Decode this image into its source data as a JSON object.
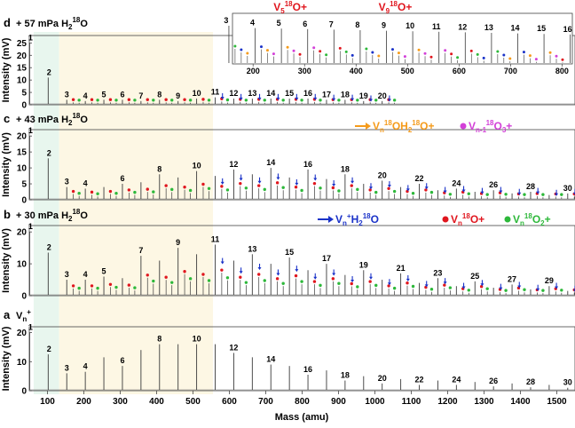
{
  "chart_data": {
    "type": "line",
    "title": "",
    "xlabel": "Mass (amu)",
    "ylabel": "Intensity (mV)",
    "xlim": [
      50,
      1550
    ],
    "x_ticks": [
      100,
      200,
      300,
      400,
      500,
      600,
      700,
      800,
      900,
      1000,
      1100,
      1200,
      1300,
      1400,
      1500
    ],
    "highlight_regions": [
      {
        "name": "green-band",
        "x_range": [
          62,
          132
        ],
        "color": "#e8f6ee"
      },
      {
        "name": "cream-band",
        "x_range": [
          132,
          555
        ],
        "color": "#fdf7e4"
      }
    ],
    "panels": [
      {
        "id": "a",
        "label": "a",
        "title": "Vn+",
        "title_base": "V",
        "title_sub": "n",
        "title_sup": "+",
        "ylim": [
          0,
          22
        ],
        "yticks": [
          0,
          10,
          20
        ],
        "peaks": [
          {
            "n": 1,
            "mass": 51,
            "intensity": 20
          },
          {
            "n": 2,
            "mass": 102,
            "intensity": 12.5
          },
          {
            "n": 3,
            "mass": 153,
            "intensity": 6
          },
          {
            "n": 4,
            "mass": 204,
            "intensity": 6.5
          },
          {
            "n": 5,
            "mass": 255,
            "intensity": 11.5
          },
          {
            "n": 6,
            "mass": 306,
            "intensity": 8.5
          },
          {
            "n": 7,
            "mass": 357,
            "intensity": 14
          },
          {
            "n": 8,
            "mass": 408,
            "intensity": 16
          },
          {
            "n": 9,
            "mass": 459,
            "intensity": 16
          },
          {
            "n": 10,
            "mass": 510,
            "intensity": 16
          },
          {
            "n": 11,
            "mass": 561,
            "intensity": 16
          },
          {
            "n": 12,
            "mass": 612,
            "intensity": 13
          },
          {
            "n": 13,
            "mass": 663,
            "intensity": 11.5
          },
          {
            "n": 14,
            "mass": 714,
            "intensity": 9
          },
          {
            "n": 15,
            "mass": 765,
            "intensity": 8.5
          },
          {
            "n": 16,
            "mass": 816,
            "intensity": 5.5
          },
          {
            "n": 17,
            "mass": 867,
            "intensity": 7
          },
          {
            "n": 18,
            "mass": 918,
            "intensity": 3.5
          },
          {
            "n": 19,
            "mass": 969,
            "intensity": 5
          },
          {
            "n": 20,
            "mass": 1020,
            "intensity": 2.5
          },
          {
            "n": 21,
            "mass": 1071,
            "intensity": 4
          },
          {
            "n": 22,
            "mass": 1122,
            "intensity": 2
          },
          {
            "n": 23,
            "mass": 1173,
            "intensity": 3.5
          },
          {
            "n": 24,
            "mass": 1224,
            "intensity": 2
          },
          {
            "n": 25,
            "mass": 1275,
            "intensity": 3
          },
          {
            "n": 26,
            "mass": 1326,
            "intensity": 1.5
          },
          {
            "n": 27,
            "mass": 1377,
            "intensity": 2.5
          },
          {
            "n": 28,
            "mass": 1428,
            "intensity": 1.2
          },
          {
            "n": 29,
            "mass": 1479,
            "intensity": 2
          },
          {
            "n": 30,
            "mass": 1530,
            "intensity": 1
          }
        ],
        "labeled": [
          1,
          2,
          3,
          4,
          6,
          8,
          10,
          12,
          14,
          16,
          18,
          20,
          22,
          24,
          26,
          28,
          30
        ]
      },
      {
        "id": "b",
        "label": "b",
        "title": "+ 30 mPa H2 18O",
        "title_text": "+ 30 mPa H",
        "title_sub": "2",
        "title_sup": "18",
        "title_end": "O",
        "ylim": [
          0,
          22
        ],
        "yticks": [
          0,
          10,
          20
        ],
        "peaks": [
          {
            "n": 1,
            "mass": 51,
            "intensity": 20
          },
          {
            "n": 2,
            "mass": 102,
            "intensity": 13.5
          },
          {
            "n": 3,
            "mass": 153,
            "intensity": 5
          },
          {
            "n": 4,
            "mass": 204,
            "intensity": 5
          },
          {
            "n": 5,
            "mass": 255,
            "intensity": 6
          },
          {
            "n": 6,
            "mass": 306,
            "intensity": 5.5
          },
          {
            "n": 7,
            "mass": 357,
            "intensity": 12.5
          },
          {
            "n": 8,
            "mass": 408,
            "intensity": 11
          },
          {
            "n": 9,
            "mass": 459,
            "intensity": 15
          },
          {
            "n": 10,
            "mass": 510,
            "intensity": 13
          },
          {
            "n": 11,
            "mass": 561,
            "intensity": 16
          },
          {
            "n": 12,
            "mass": 612,
            "intensity": 11
          },
          {
            "n": 13,
            "mass": 663,
            "intensity": 13
          },
          {
            "n": 14,
            "mass": 714,
            "intensity": 10
          },
          {
            "n": 15,
            "mass": 765,
            "intensity": 12
          },
          {
            "n": 16,
            "mass": 816,
            "intensity": 8
          },
          {
            "n": 17,
            "mass": 867,
            "intensity": 10
          },
          {
            "n": 18,
            "mass": 918,
            "intensity": 6.5
          },
          {
            "n": 19,
            "mass": 969,
            "intensity": 8
          },
          {
            "n": 20,
            "mass": 1020,
            "intensity": 5
          },
          {
            "n": 21,
            "mass": 1071,
            "intensity": 7
          },
          {
            "n": 22,
            "mass": 1122,
            "intensity": 4
          },
          {
            "n": 23,
            "mass": 1173,
            "intensity": 5.5
          },
          {
            "n": 24,
            "mass": 1224,
            "intensity": 3
          },
          {
            "n": 25,
            "mass": 1275,
            "intensity": 4.5
          },
          {
            "n": 26,
            "mass": 1326,
            "intensity": 2.5
          },
          {
            "n": 27,
            "mass": 1377,
            "intensity": 3.5
          },
          {
            "n": 28,
            "mass": 1428,
            "intensity": 2
          },
          {
            "n": 29,
            "mass": 1479,
            "intensity": 3
          },
          {
            "n": 30,
            "mass": 1530,
            "intensity": 1.5
          }
        ],
        "labeled": [
          1,
          2,
          3,
          4,
          5,
          7,
          9,
          11,
          13,
          15,
          17,
          19,
          21,
          23,
          25,
          27,
          29
        ]
      },
      {
        "id": "c",
        "label": "c",
        "title": "+ 43 mPa H2 18O",
        "title_text": "+ 43 mPa H",
        "title_sub": "2",
        "title_sup": "18",
        "title_end": "O",
        "ylim": [
          0,
          22
        ],
        "yticks": [
          0,
          5,
          10,
          15,
          20
        ],
        "peaks": [
          {
            "n": 1,
            "mass": 51,
            "intensity": 20
          },
          {
            "n": 2,
            "mass": 102,
            "intensity": 13
          },
          {
            "n": 3,
            "mass": 153,
            "intensity": 4
          },
          {
            "n": 4,
            "mass": 204,
            "intensity": 3.5
          },
          {
            "n": 5,
            "mass": 255,
            "intensity": 4
          },
          {
            "n": 6,
            "mass": 306,
            "intensity": 5
          },
          {
            "n": 7,
            "mass": 357,
            "intensity": 5.5
          },
          {
            "n": 8,
            "mass": 408,
            "intensity": 8
          },
          {
            "n": 9,
            "mass": 459,
            "intensity": 7
          },
          {
            "n": 10,
            "mass": 510,
            "intensity": 9
          },
          {
            "n": 11,
            "mass": 561,
            "intensity": 7.5
          },
          {
            "n": 12,
            "mass": 612,
            "intensity": 9.5
          },
          {
            "n": 13,
            "mass": 663,
            "intensity": 8
          },
          {
            "n": 14,
            "mass": 714,
            "intensity": 10
          },
          {
            "n": 15,
            "mass": 765,
            "intensity": 7
          },
          {
            "n": 16,
            "mass": 816,
            "intensity": 9.5
          },
          {
            "n": 17,
            "mass": 867,
            "intensity": 6.5
          },
          {
            "n": 18,
            "mass": 918,
            "intensity": 8
          },
          {
            "n": 19,
            "mass": 969,
            "intensity": 5
          },
          {
            "n": 20,
            "mass": 1020,
            "intensity": 6
          },
          {
            "n": 21,
            "mass": 1071,
            "intensity": 4
          },
          {
            "n": 22,
            "mass": 1122,
            "intensity": 5
          },
          {
            "n": 23,
            "mass": 1173,
            "intensity": 3
          },
          {
            "n": 24,
            "mass": 1224,
            "intensity": 3.5
          },
          {
            "n": 25,
            "mass": 1275,
            "intensity": 2.5
          },
          {
            "n": 26,
            "mass": 1326,
            "intensity": 3
          },
          {
            "n": 27,
            "mass": 1377,
            "intensity": 2
          },
          {
            "n": 28,
            "mass": 1428,
            "intensity": 2.5
          },
          {
            "n": 29,
            "mass": 1479,
            "intensity": 1.5
          },
          {
            "n": 30,
            "mass": 1530,
            "intensity": 2
          }
        ],
        "labeled": [
          1,
          2,
          3,
          4,
          6,
          8,
          10,
          12,
          14,
          16,
          18,
          20,
          22,
          24,
          26,
          28,
          30
        ]
      },
      {
        "id": "d",
        "label": "d",
        "title": "+ 57 mPa H2 18O",
        "title_text": "+ 57 mPa H",
        "title_sub": "2",
        "title_sup": "18",
        "title_end": "O",
        "ylim": [
          0,
          28
        ],
        "yticks": [
          0,
          5,
          10,
          15,
          20,
          25
        ],
        "peaks": [
          {
            "n": 1,
            "mass": 51,
            "intensity": 25
          },
          {
            "n": 2,
            "mass": 102,
            "intensity": 11
          },
          {
            "n": 3,
            "mass": 153,
            "intensity": 2
          },
          {
            "n": 4,
            "mass": 204,
            "intensity": 1.5
          },
          {
            "n": 5,
            "mass": 255,
            "intensity": 2
          },
          {
            "n": 6,
            "mass": 306,
            "intensity": 2
          },
          {
            "n": 7,
            "mass": 357,
            "intensity": 1.5
          },
          {
            "n": 8,
            "mass": 408,
            "intensity": 2
          },
          {
            "n": 9,
            "mass": 459,
            "intensity": 1.5
          },
          {
            "n": 10,
            "mass": 510,
            "intensity": 2.5
          },
          {
            "n": 11,
            "mass": 561,
            "intensity": 3
          },
          {
            "n": 12,
            "mass": 612,
            "intensity": 2.5
          },
          {
            "n": 13,
            "mass": 663,
            "intensity": 2.5
          },
          {
            "n": 14,
            "mass": 714,
            "intensity": 2.5
          },
          {
            "n": 15,
            "mass": 765,
            "intensity": 2.5
          },
          {
            "n": 16,
            "mass": 816,
            "intensity": 2.5
          },
          {
            "n": 17,
            "mass": 867,
            "intensity": 2
          },
          {
            "n": 18,
            "mass": 918,
            "intensity": 2
          },
          {
            "n": 19,
            "mass": 969,
            "intensity": 1.5
          },
          {
            "n": 20,
            "mass": 1020,
            "intensity": 1.5
          }
        ],
        "labeled": [
          1,
          2,
          3,
          4,
          5,
          6,
          7,
          8,
          9,
          10,
          11,
          12,
          13,
          14,
          15,
          16,
          17,
          18,
          19,
          20
        ]
      }
    ],
    "inset": {
      "panel": "d",
      "xlim": [
        160,
        820
      ],
      "x_ticks": [
        200,
        300,
        400,
        500,
        600,
        700,
        800
      ],
      "peak_labels": [
        3,
        4,
        5,
        6,
        7,
        8,
        9,
        10,
        11,
        12,
        13,
        14,
        15,
        16
      ],
      "callouts": [
        {
          "name": "v5-18o-callout",
          "base": "V",
          "sub": "5",
          "sup": "18",
          "end": "O+",
          "near_n": 5
        },
        {
          "name": "v9-18o-callout",
          "base": "V",
          "sub": "9",
          "sup": "18",
          "end": "O+",
          "near_n": 9
        }
      ]
    },
    "legend": [
      {
        "name": "vnh2o-legend",
        "marker": "blue-arrow",
        "color": "#1a32c8",
        "base": "V",
        "sub": "n",
        "sup": "+",
        "end1": "H",
        "sub2": "2",
        "sup2": "18",
        "end2": "O"
      },
      {
        "name": "vno-legend",
        "marker": "red-dot",
        "color": "#e0161e",
        "base": "V",
        "sub": "n",
        "sup": "18",
        "end1": "O+"
      },
      {
        "name": "vno2-legend",
        "marker": "green-dot",
        "color": "#2db83a",
        "base": "V",
        "sub": "n",
        "sup": "18",
        "end1": "O",
        "sub2": "2",
        "end2": "+"
      },
      {
        "name": "vnoh2o-legend",
        "marker": "orange-arrow",
        "color": "#f59b1b",
        "base": "V",
        "sub": "n",
        "sup": "18",
        "end1": "OH",
        "sub2": "2",
        "sup2": "18",
        "end2": "O+"
      },
      {
        "name": "vno3-legend",
        "marker": "magenta-dot",
        "color": "#d340d8",
        "base": "V",
        "sub": "n-1",
        "sup": "18",
        "end1": "O",
        "sub2": "3",
        "end2": "+"
      }
    ],
    "colors": {
      "line": "#3a3a3a",
      "red": "#e0161e",
      "green": "#2db83a",
      "blue": "#1a32c8",
      "orange": "#f59b1b",
      "magenta": "#d340d8"
    }
  }
}
